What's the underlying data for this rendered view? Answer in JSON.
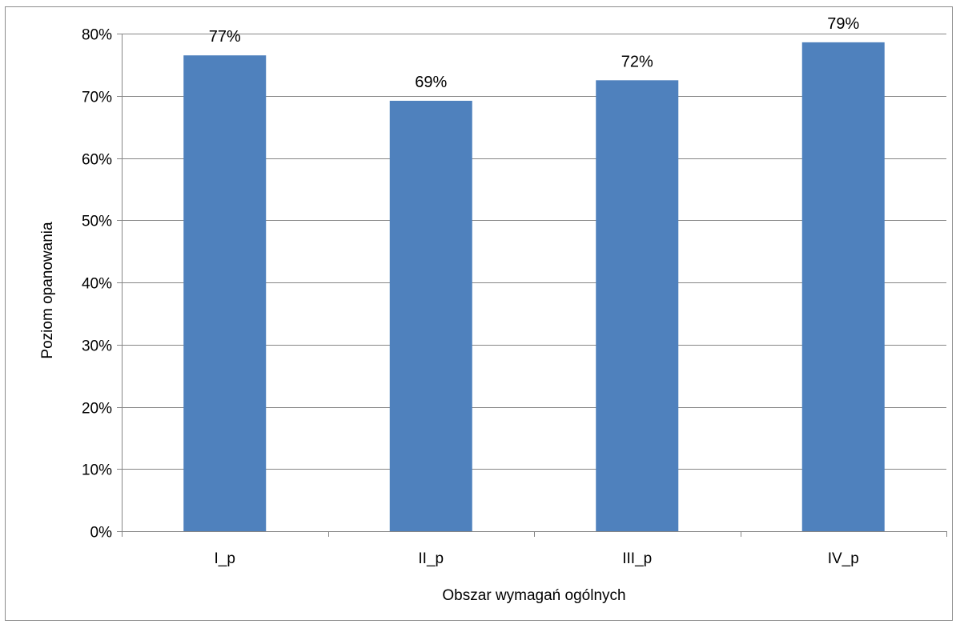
{
  "chart_data": {
    "type": "bar",
    "categories": [
      "I_p",
      "II_p",
      "III_p",
      "IV_p"
    ],
    "values": [
      76.5,
      69.2,
      72.5,
      78.6
    ],
    "data_labels": [
      "77%",
      "69%",
      "72%",
      "79%"
    ],
    "xlabel": "Obszar wymagań ogólnych",
    "ylabel": "Poziom opanowania",
    "ylim": [
      0,
      80
    ],
    "y_ticks": [
      0,
      10,
      20,
      30,
      40,
      50,
      60,
      70,
      80
    ],
    "y_tick_labels": [
      "0%",
      "10%",
      "20%",
      "30%",
      "40%",
      "50%",
      "60%",
      "70%",
      "80%"
    ],
    "grid": true,
    "legend": "none",
    "bar_color": "#4f81bd",
    "grid_color": "#868686"
  }
}
